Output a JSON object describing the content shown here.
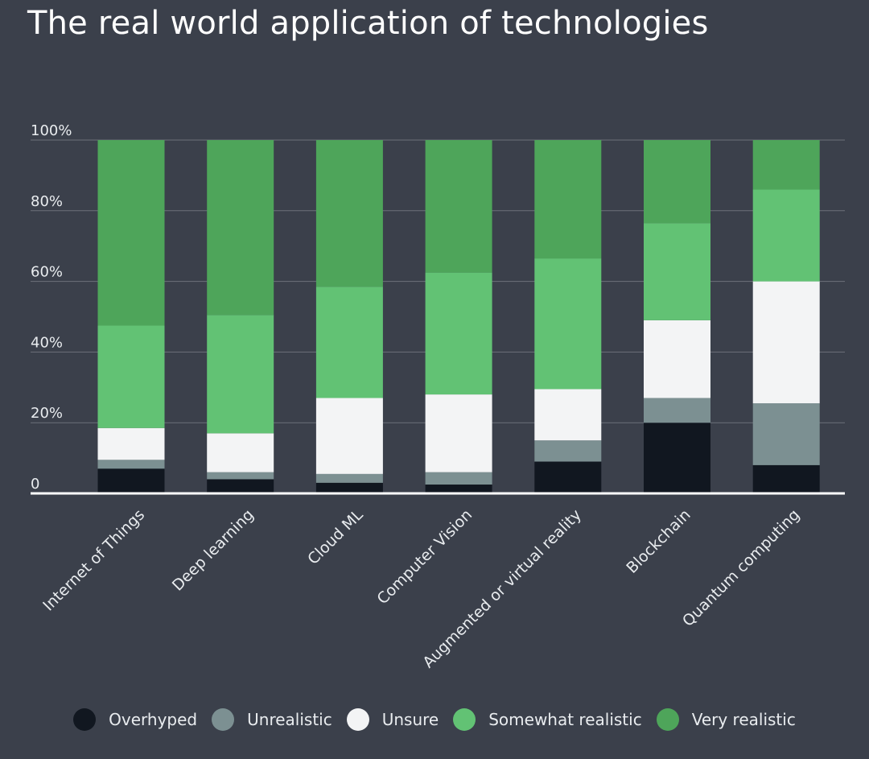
{
  "chart_data": {
    "type": "bar",
    "stacked": true,
    "title": "The real world application of technologies",
    "xlabel": "",
    "ylabel": "",
    "ylim": [
      0,
      100
    ],
    "yticks": [
      0,
      20,
      40,
      60,
      80,
      100
    ],
    "ytick_labels": [
      "0",
      "20%",
      "40%",
      "60%",
      "80%",
      "100%"
    ],
    "grid": true,
    "legend_position": "bottom",
    "categories": [
      "Internet of Things",
      "Deep learning",
      "Cloud ML",
      "Computer Vision",
      "Augmented or virtual reality",
      "Blockchain",
      "Quantum computing"
    ],
    "series": [
      {
        "name": "Overhyped",
        "color": "#111720",
        "values": [
          7,
          4,
          3,
          2.5,
          9,
          20,
          8
        ]
      },
      {
        "name": "Unrealistic",
        "color": "#7c9092",
        "values": [
          2.5,
          2,
          2.5,
          3.5,
          6,
          7,
          17.5
        ]
      },
      {
        "name": "Unsure",
        "color": "#f3f4f5",
        "values": [
          9,
          11,
          21.5,
          22,
          14.5,
          22,
          34.5
        ]
      },
      {
        "name": "Somewhat realistic",
        "color": "#62c274",
        "values": [
          29,
          33.5,
          31.5,
          34.5,
          37,
          27.5,
          26
        ]
      },
      {
        "name": "Very realistic",
        "color": "#4ea55a",
        "values": [
          52.5,
          49.5,
          41.5,
          37.5,
          33.5,
          23.5,
          14
        ]
      }
    ],
    "colors": {
      "background": "#3b404b",
      "grid": "#6c717a",
      "baseline": "#ffffff",
      "tick_text": "#e9ecef"
    }
  }
}
